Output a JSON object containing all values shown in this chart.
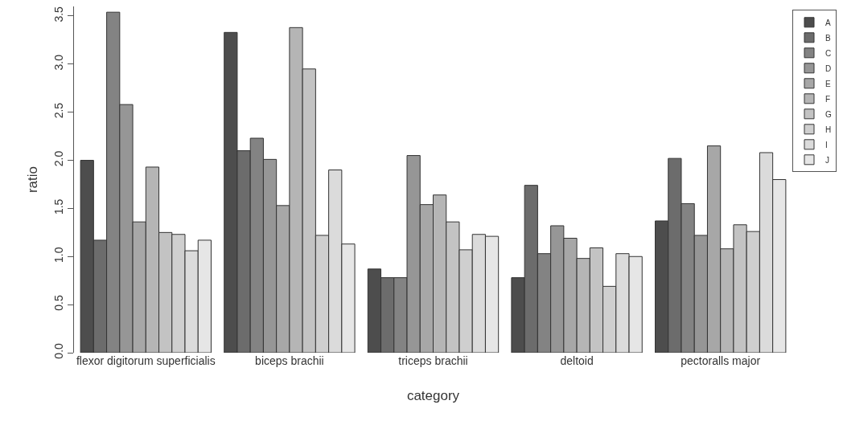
{
  "chart_data": {
    "type": "bar",
    "xlabel": "category",
    "ylabel": "ratio",
    "categories": [
      "flexor digitorum superficialis",
      "biceps brachii",
      "triceps brachii",
      "deltoid",
      "pectoralls major"
    ],
    "ylim": [
      0,
      3.6
    ],
    "yticks": [
      {
        "value": 0,
        "label": "0.0"
      },
      {
        "value": 0.5,
        "label": "0.5"
      },
      {
        "value": 1,
        "label": "1.0"
      },
      {
        "value": 1.5,
        "label": "1.5"
      },
      {
        "value": 2,
        "label": "2.0"
      },
      {
        "value": 2.5,
        "label": "2.5"
      },
      {
        "value": 3,
        "label": "3.0"
      },
      {
        "value": 3.5,
        "label": "3.5"
      }
    ],
    "grid": false,
    "legend": "top right",
    "series": [
      {
        "name": "A",
        "color": "#4d4d4d",
        "values": [
          2.0,
          3.33,
          0.87,
          0.78,
          1.37
        ]
      },
      {
        "name": "B",
        "color": "#6c6c6c",
        "values": [
          1.17,
          2.1,
          0.78,
          1.74,
          2.02
        ]
      },
      {
        "name": "C",
        "color": "#838383",
        "values": [
          3.54,
          2.23,
          0.78,
          1.03,
          1.55
        ]
      },
      {
        "name": "D",
        "color": "#969696",
        "values": [
          2.58,
          2.01,
          2.05,
          1.32,
          1.22
        ]
      },
      {
        "name": "E",
        "color": "#a7a7a7",
        "values": [
          1.36,
          1.53,
          1.54,
          1.19,
          2.15
        ]
      },
      {
        "name": "F",
        "color": "#b5b5b5",
        "values": [
          1.93,
          3.38,
          1.64,
          0.98,
          1.08
        ]
      },
      {
        "name": "G",
        "color": "#c3c3c3",
        "values": [
          1.25,
          2.95,
          1.36,
          1.09,
          1.33
        ]
      },
      {
        "name": "H",
        "color": "#cfcfcf",
        "values": [
          1.23,
          1.22,
          1.07,
          0.69,
          1.26
        ]
      },
      {
        "name": "I",
        "color": "#dbdbdb",
        "values": [
          1.06,
          1.9,
          1.23,
          1.03,
          2.08
        ]
      },
      {
        "name": "J",
        "color": "#e6e6e6",
        "values": [
          1.17,
          1.13,
          1.21,
          1.0,
          1.8
        ]
      }
    ]
  }
}
